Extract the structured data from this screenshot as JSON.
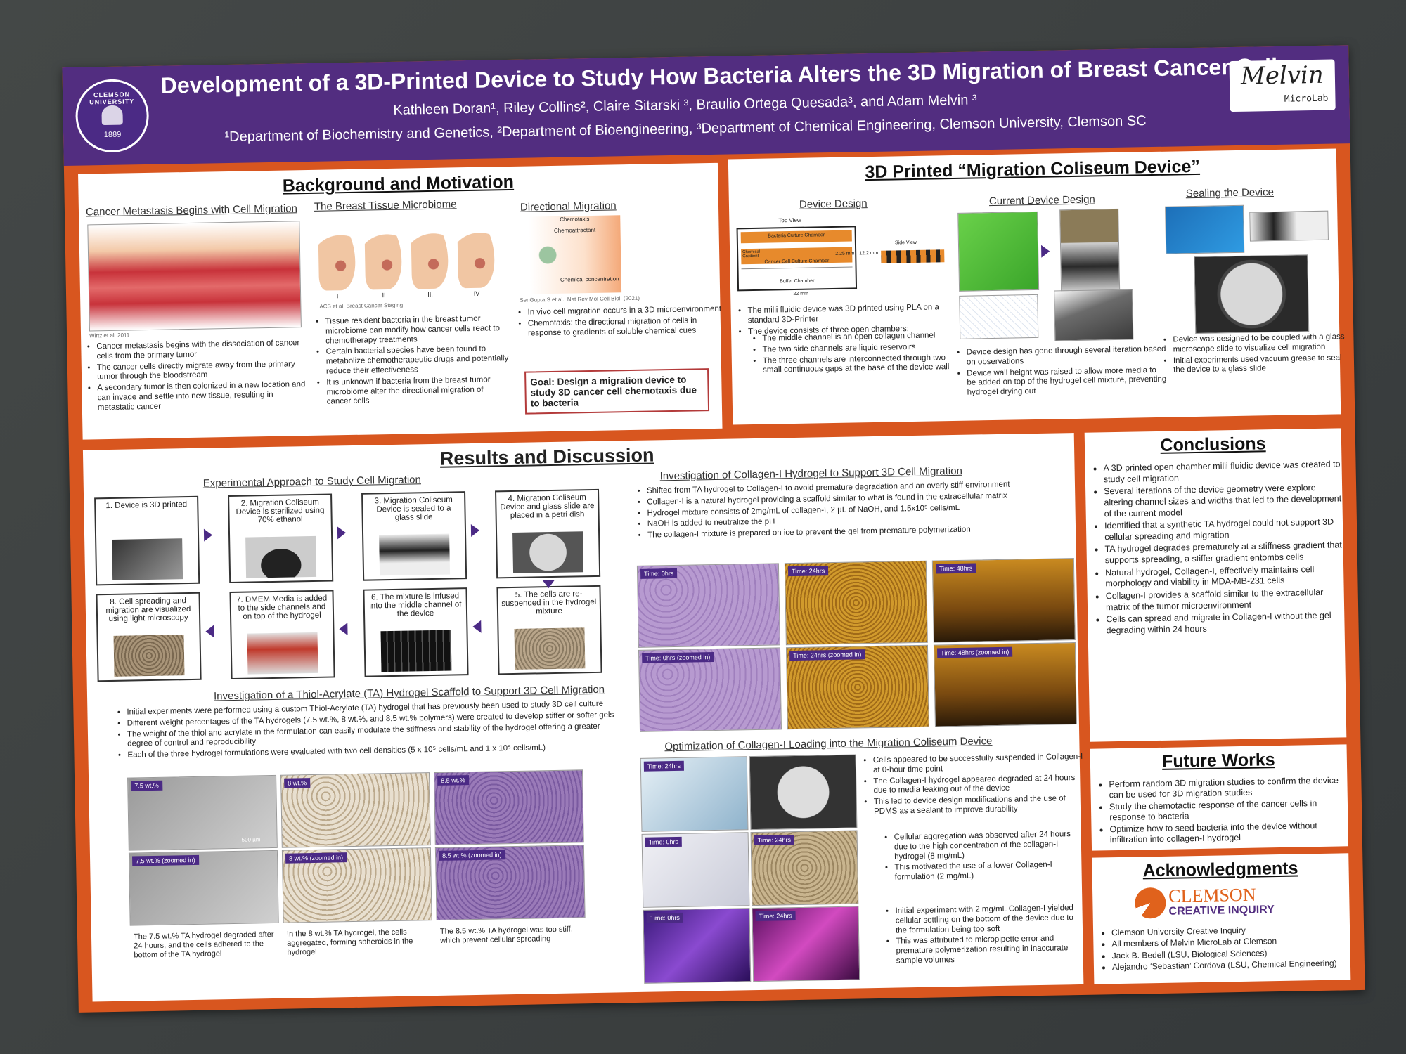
{
  "header": {
    "title": "Development of a 3D-Printed Device to Study How Bacteria Alters the 3D Migration of Breast Cancer Cells",
    "authors": "Kathleen Doran¹, Riley Collins², Claire Sitarski ³, Braulio Ortega Quesada³, and Adam Melvin ³",
    "affiliations": "¹Department of Biochemistry and Genetics, ²Department of Bioengineering, ³Department of Chemical Engineering, Clemson University, Clemson SC",
    "seal": {
      "name": "CLEMSON UNIVERSITY",
      "year": "1889"
    },
    "logo": {
      "name": "Melvin",
      "sub": "MicroLab"
    }
  },
  "background": {
    "heading": "Background and Motivation",
    "col1": {
      "subtitle": "Cancer Metastasis Begins with Cell Migration",
      "citation": "Wirtz et al. 2011",
      "bullets": [
        "Cancer metastasis begins with the dissociation of cancer cells from the primary tumor",
        "The cancer cells directly migrate away from the primary tumor through the bloodstream",
        "A secondary tumor is then colonized in a new location and can invade and settle into new tissue, resulting in metastatic cancer"
      ]
    },
    "col2": {
      "subtitle": "The Breast Tissue Microbiome",
      "stages": [
        "I",
        "II",
        "III",
        "IV"
      ],
      "citation": "ACS et al. Breast Cancer Staging",
      "bullets": [
        "Tissue resident bacteria in the breast tumor microbiome can modify how cancer cells react to chemotherapy treatments",
        "Certain bacterial species have been found to metabolize chemotherapeutic drugs and potentially reduce their effectiveness",
        "It is unknown if bacteria from the breast tumor microbiome alter the directional migration of cancer cells"
      ]
    },
    "col3": {
      "subtitle": "Directional Migration",
      "figure": {
        "title": "Chemotaxis",
        "label": "Chemoattractant",
        "axis": "Chemical concentration"
      },
      "citation": "SenGupta S et al., Nat Rev Mol Cell Biol. (2021)",
      "bullets": [
        "In vivo cell migration occurs in a 3D microenvironment",
        "Chemotaxis: the directional migration of cells in response to gradients of soluble chemical cues"
      ],
      "goal": "Goal: Design a migration device to study 3D cancer cell chemotaxis due to bacteria"
    }
  },
  "device": {
    "heading": "3D Printed “Migration Coliseum Device”",
    "col1": {
      "subtitle": "Device Design",
      "diagram": {
        "top": "Top View",
        "bacteria": "Bacteria Culture Chamber",
        "gradient": "Chemical Gradient",
        "cancer": "Cancer Cell Culture Chamber",
        "buffer": "Buffer Chamber",
        "width": "22 mm",
        "height": "12.2 mm",
        "gap": "2.25 mm",
        "side": "Side View"
      },
      "bullets": [
        "The milli fluidic device was 3D printed using PLA on a standard 3D-Printer",
        "The device consists of three open chambers:"
      ],
      "sub_bullets": [
        "The middle channel is an open collagen channel",
        "The two side channels are liquid reservoirs",
        "The three channels are interconnected through two small continuous gaps at the base of the device wall"
      ]
    },
    "col2": {
      "subtitle": "Current Device Design",
      "bullets": [
        "Device design has gone through several iteration based on observations",
        "Device wall height was raised to allow more media to be added on top of the hydrogel cell mixture, preventing hydrogel drying out"
      ]
    },
    "col3": {
      "subtitle": "Sealing the Device",
      "bullets": [
        "Device was designed to be coupled with a glass microscope slide to visualize cell migration",
        "Initial experiments used vacuum grease to seal the device to a glass slide"
      ]
    }
  },
  "results": {
    "heading": "Results and Discussion",
    "approach": {
      "subtitle": "Experimental Approach to Study Cell Migration",
      "steps": [
        "1. Device is 3D printed",
        "2. Migration Coliseum Device is sterilized using 70% ethanol",
        "3. Migration Coliseum Device is sealed to a glass slide",
        "4. Migration Coliseum Device and glass slide are placed in a petri dish",
        "5. The cells are re-suspended in the hydrogel mixture",
        "6. The mixture is infused into the middle channel of the device",
        "7. DMEM Media is added to the side channels and on top of the hydrogel",
        "8. Cell spreading and migration are visualized using light microscopy"
      ]
    },
    "ta": {
      "subtitle": "Investigation of a Thiol-Acrylate (TA) Hydrogel Scaffold to Support 3D Cell Migration",
      "bullets": [
        "Initial experiments were performed using a custom Thiol-Acrylate (TA) hydrogel that has previously been used to study 3D cell culture",
        "Different weight percentages of the TA hydrogels (7.5 wt.%, 8 wt.%, and 8.5 wt.% polymers) were created to develop stiffer or softer gels",
        "The weight of the thiol and acrylate in the formulation can easily modulate the stiffness and stability of the hydrogel offering a greater degree of control and reproducibility",
        "Each of the three hydrogel formulations were evaluated with two cell densities (5 x 10⁵ cells/mL and 1 x 10⁵ cells/mL)"
      ],
      "image_labels": [
        "7.5 wt.%",
        "8 wt.%",
        "8.5 wt.%",
        "7.5 wt.% (zoomed in)",
        "8 wt.% (zoomed in)",
        "8.5 wt.% (zoomed in)"
      ],
      "scale_bar": "500 µm",
      "captions": [
        "The 7.5 wt.% TA hydrogel degraded after 24 hours, and the cells adhered to the bottom of the TA hydrogel",
        "In the 8 wt.% TA hydrogel, the cells aggregated, forming spheroids in the hydrogel",
        "The 8.5 wt.% TA hydrogel was too stiff, which prevent cellular spreading"
      ]
    },
    "collagen": {
      "subtitle": "Investigation of Collagen-I Hydrogel to Support 3D Cell Migration",
      "bullets": [
        "Shifted from TA hydrogel to Collagen-I to avoid premature degradation and an overly stiff environment",
        "Collagen-I is a natural hydrogel providing a scaffold similar to what is found in the extracellular matrix",
        "Hydrogel mixture consists of 2mg/mL of collagen-I, 2 µL of NaOH, and 1.5x10⁵ cells/mL",
        "NaOH is added to neutralize the pH",
        "The collagen-I mixture is prepared on ice to prevent the gel from premature polymerization"
      ],
      "image_labels": [
        "Time: 0hrs",
        "Time: 24hrs",
        "Time: 48hrs",
        "Time: 0hrs (zoomed in)",
        "Time: 24hrs (zoomed in)",
        "Time: 48hrs (zoomed in)"
      ]
    },
    "optimization": {
      "subtitle": "Optimization of Collagen-I Loading into the Migration Coliseum Device",
      "image_labels": [
        "Time: 24hrs",
        "Time: 0hrs",
        "Time: 24hrs",
        "Time: 0hrs",
        "Time: 24hrs"
      ],
      "group1": [
        "Cells appeared to be successfully suspended in Collagen-I at 0-hour time point",
        "The Collagen-I hydrogel appeared degraded at 24 hours due to media leaking out of the device",
        "This led to device design modifications and the use of PDMS as a sealant to improve durability"
      ],
      "group2": [
        "Cellular aggregation was observed after 24 hours due to the high concentration of the collagen-I hydrogel (8 mg/mL)",
        "This motivated the use of a lower Collagen-I formulation (2 mg/mL)"
      ],
      "group3": [
        "Initial experiment with 2 mg/mL Collagen-I yielded cellular settling on the bottom of the device due to the formulation being too soft",
        "This was attributed to micropipette error and premature polymerization resulting in inaccurate sample volumes"
      ]
    }
  },
  "conclusions": {
    "heading": "Conclusions",
    "bullets": [
      "A 3D printed open chamber milli fluidic device was created to study cell migration",
      "Several iterations of the device geometry were explore altering channel sizes and widths that led to the development of the current model",
      "Identified that a synthetic TA hydrogel could not support 3D cellular spreading and migration",
      "TA hydrogel degrades prematurely at a stiffness gradient that supports spreading, a stiffer gradient entombs cells",
      "Natural hydrogel, Collagen-I, effectively maintains cell morphology and viability in MDA-MB-231 cells",
      "Collagen-I provides a scaffold similar to the extracellular matrix of the tumor microenvironment",
      "Cells can spread and migrate in Collagen-I without the gel degrading within 24 hours"
    ]
  },
  "future": {
    "heading": "Future Works",
    "bullets": [
      "Perform random 3D migration studies to confirm the device can be used for 3D migration studies",
      "Study the chemotactic response of the cancer cells in response to bacteria",
      "Optimize how to seed bacteria into the device without infiltration into collagen-I hydrogel"
    ]
  },
  "acknowledgments": {
    "heading": "Acknowledgments",
    "logo": {
      "name": "CLEMSON",
      "sub": "CREATIVE INQUIRY"
    },
    "bullets": [
      "Clemson University Creative Inquiry",
      "All members of Melvin MicroLab at Clemson",
      "Jack B. Bedell (LSU, Biological Sciences)",
      "Alejandro ‘Sebastian’ Cordova (LSU, Chemical Engineering)"
    ]
  }
}
